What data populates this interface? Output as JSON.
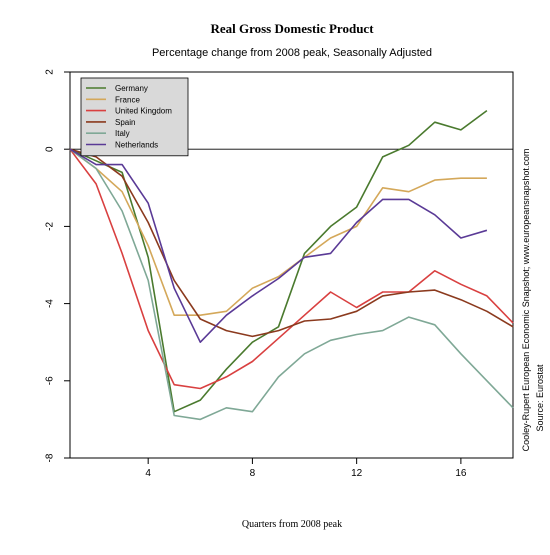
{
  "chart_data": {
    "type": "line",
    "title": "Real Gross Domestic Product",
    "subtitle": "Percentage change from 2008 peak, Seasonally Adjusted",
    "xlabel": "Quarters from 2008 peak",
    "ylabel": "",
    "xlim": [
      1,
      18
    ],
    "ylim": [
      -8,
      2
    ],
    "x_ticks": [
      4,
      8,
      12,
      16
    ],
    "y_ticks": [
      -8,
      -6,
      -4,
      -2,
      0,
      2
    ],
    "x_tick_labels": [
      "4",
      "8",
      "12",
      "16"
    ],
    "y_tick_labels": [
      "-8",
      "-6",
      "-4",
      "-2",
      "0",
      "2"
    ],
    "zero_line": true,
    "legend_position": "top-left",
    "credit": [
      "Cooley-Rupert European Economic Snapshot; www.europeansnapshot.com",
      "Source: Eurostat"
    ],
    "series": [
      {
        "name": "Germany",
        "color": "#4a7a2e",
        "x": [
          1,
          2,
          3,
          4,
          5,
          6,
          7,
          8,
          9,
          10,
          11,
          12,
          13,
          14,
          15,
          16,
          17
        ],
        "values": [
          0,
          -0.3,
          -0.6,
          -2.8,
          -6.8,
          -6.5,
          -5.7,
          -5.0,
          -4.6,
          -2.7,
          -2.0,
          -1.5,
          -0.2,
          0.1,
          0.7,
          0.5,
          1.0
        ]
      },
      {
        "name": "France",
        "color": "#d4a85a",
        "x": [
          1,
          2,
          3,
          4,
          5,
          6,
          7,
          8,
          9,
          10,
          11,
          12,
          13,
          14,
          15,
          16,
          17
        ],
        "values": [
          0,
          -0.5,
          -1.1,
          -2.5,
          -4.3,
          -4.3,
          -4.2,
          -3.6,
          -3.3,
          -2.8,
          -2.3,
          -2.0,
          -1.0,
          -1.1,
          -0.8,
          -0.75,
          -0.75
        ]
      },
      {
        "name": "United Kingdom",
        "color": "#d94040",
        "x": [
          1,
          2,
          3,
          4,
          5,
          6,
          7,
          8,
          9,
          10,
          11,
          12,
          13,
          14,
          15,
          16,
          17,
          18
        ],
        "values": [
          0,
          -0.9,
          -2.7,
          -4.7,
          -6.1,
          -6.2,
          -5.9,
          -5.5,
          -4.9,
          -4.3,
          -3.7,
          -4.1,
          -3.7,
          -3.7,
          -3.15,
          -3.5,
          -3.8,
          -4.5
        ]
      },
      {
        "name": "Spain",
        "color": "#8b3a1e",
        "x": [
          1,
          2,
          3,
          4,
          5,
          6,
          7,
          8,
          9,
          10,
          11,
          12,
          13,
          14,
          15,
          16,
          17,
          18
        ],
        "values": [
          0,
          -0.2,
          -0.7,
          -1.9,
          -3.4,
          -4.4,
          -4.7,
          -4.85,
          -4.7,
          -4.45,
          -4.4,
          -4.2,
          -3.8,
          -3.7,
          -3.65,
          -3.9,
          -4.2,
          -4.6
        ]
      },
      {
        "name": "Italy",
        "color": "#7fa896",
        "x": [
          1,
          2,
          3,
          4,
          5,
          6,
          7,
          8,
          9,
          10,
          11,
          12,
          13,
          14,
          15,
          16,
          17,
          18
        ],
        "values": [
          0,
          -0.5,
          -1.6,
          -3.4,
          -6.9,
          -7.0,
          -6.7,
          -6.8,
          -5.9,
          -5.3,
          -4.95,
          -4.8,
          -4.7,
          -4.35,
          -4.55,
          -5.3,
          -6.0,
          -6.7
        ]
      },
      {
        "name": "Netherlands",
        "color": "#5a3a96",
        "x": [
          1,
          2,
          3,
          4,
          5,
          6,
          7,
          8,
          9,
          10,
          11,
          12,
          13,
          14,
          15,
          16,
          17
        ],
        "values": [
          0,
          -0.4,
          -0.4,
          -1.4,
          -3.6,
          -5.0,
          -4.3,
          -3.8,
          -3.35,
          -2.8,
          -2.7,
          -1.9,
          -1.3,
          -1.3,
          -1.7,
          -2.3,
          -2.1
        ]
      }
    ]
  }
}
